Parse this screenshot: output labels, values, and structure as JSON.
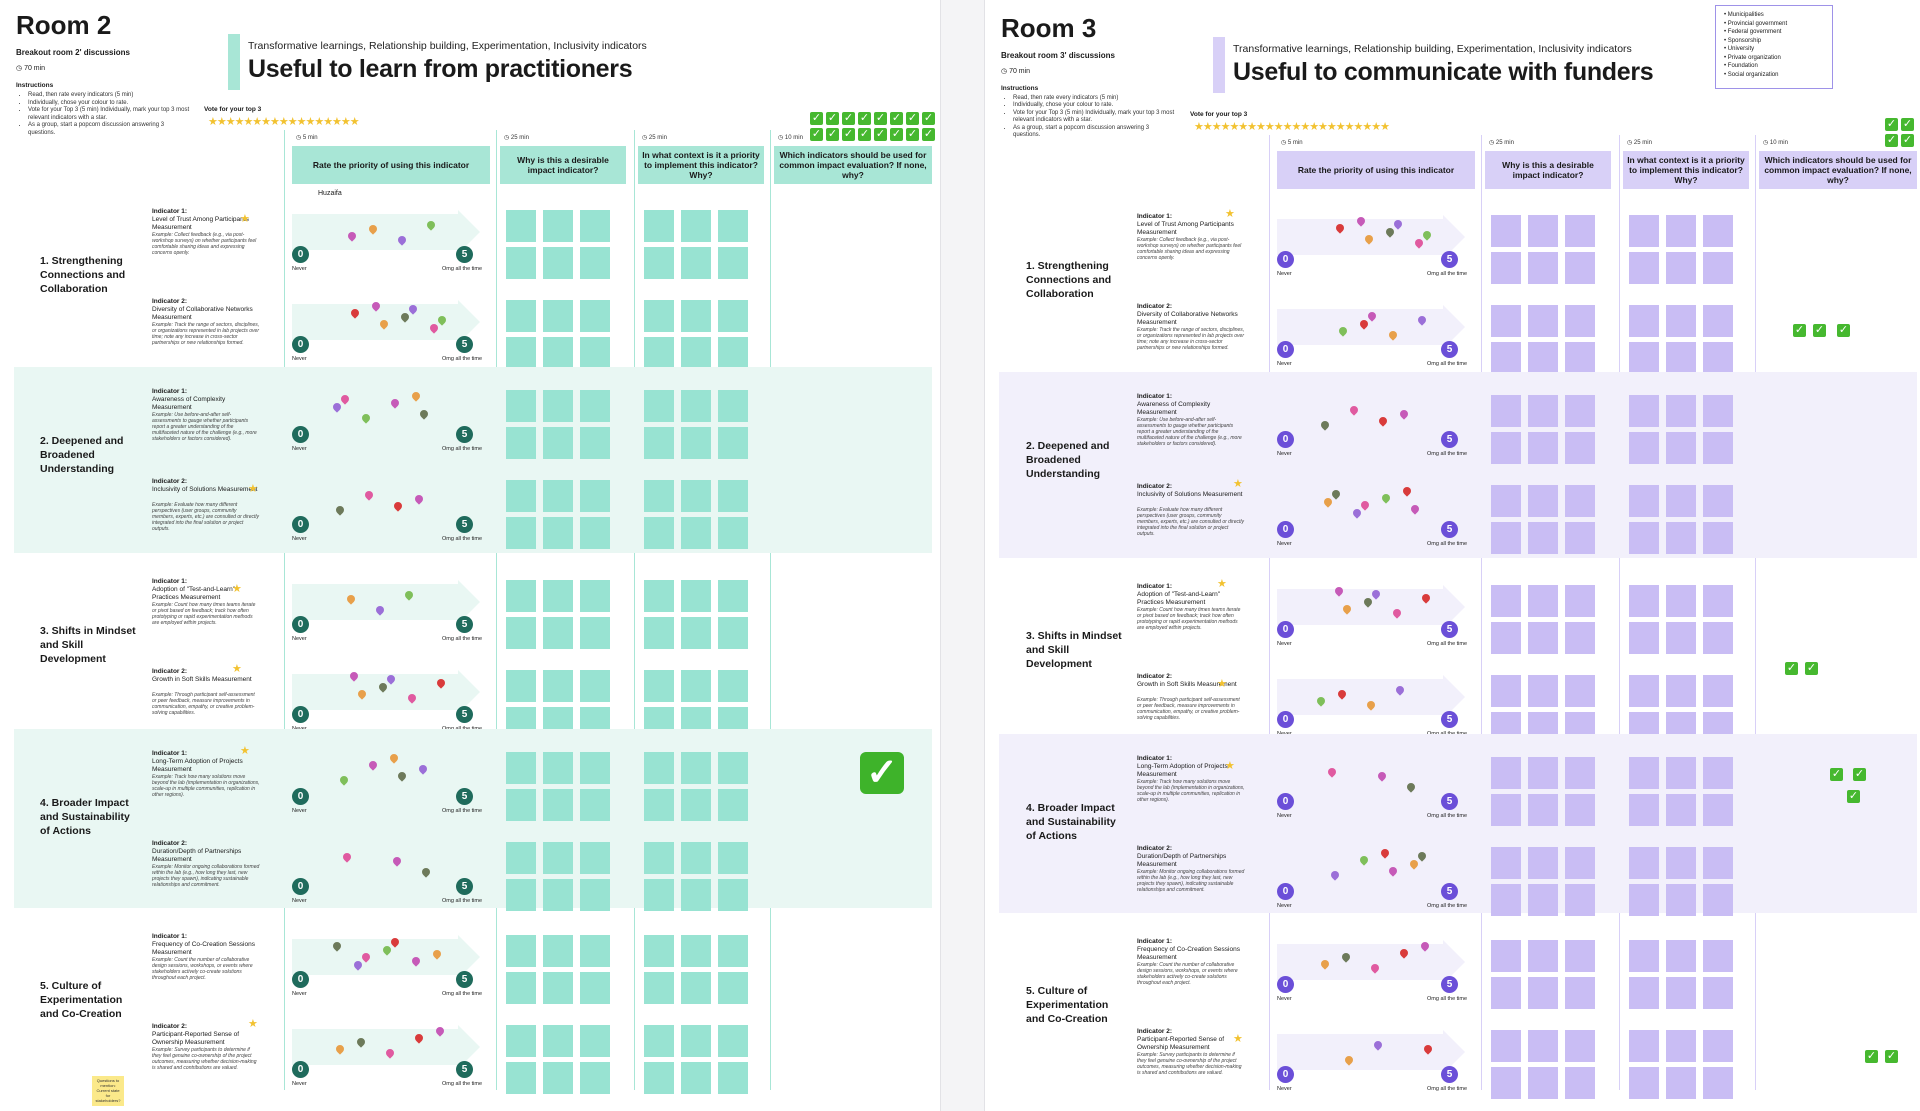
{
  "colors": {
    "room2_accent": "#a8e6d6",
    "room2_band": "#e9f7f3",
    "room2_note": "#98e3d2",
    "room2_circle": "#1f6b5c",
    "room3_accent": "#d8d0f7",
    "room3_band": "#f2f0fb",
    "room3_note": "#c9bdf4",
    "room3_circle": "#6b4fd8",
    "star": "#f2c230",
    "check": "#46b82f"
  },
  "room2": {
    "title": "Room 2",
    "subtitle": "Breakout room 2' discussions",
    "timer": "70 min",
    "instructions_title": "Instructions",
    "instructions": [
      "Read, then rate every indicators (5 min)",
      "Individually, chose your colour to rate.",
      "Vote for your Top 3 (5 min) Individually, mark your top 3 most relevant indicators with a star.",
      "As a group, start a popcorn discussion answering 3 questions."
    ],
    "vote_title": "Vote for your top 3",
    "head_tags": "Transformative learnings, Relationship building, Experimentation, Inclusivity indicators",
    "head_main": "Useful to learn from practitioners",
    "handwriting": "Huzaifa",
    "bottom_note": "Questions to mention: Current state for stakeholders?"
  },
  "room3": {
    "title": "Room 3",
    "subtitle": "Breakout room 3' discussions",
    "timer": "70 min",
    "instructions_title": "Instructions",
    "instructions": [
      "Read, then rate every indicators (5 min)",
      "Individually, chose your colour to rate.",
      "Vote for your Top 3 (5 min) Individually, mark your top 3 most relevant indicators with a star.",
      "As a group, start a popcorn discussion answering 3 questions."
    ],
    "vote_title": "Vote for your top 3",
    "head_tags": "Transformative learnings, Relationship building, Experimentation, Inclusivity indicators",
    "head_main": "Useful to communicate with funders",
    "legend": [
      "Municipalities",
      "Provincial government",
      "Federal government",
      "Sponsorship",
      "University",
      "Private organization",
      "Foundation",
      "Social organization"
    ]
  },
  "columns": {
    "c1_time": "5 min",
    "c1_head": "Rate the priority of using this indicator",
    "c2_time": "25 min",
    "c2_head": "Why is this a desirable impact indicator?",
    "c3_time": "25 min",
    "c3_head": "In what context is it a priority to implement this indicator? Why?",
    "c4_time": "10 min",
    "c4_head": "Which indicators should be used for common impact evaluation? If none, why?"
  },
  "scale": {
    "min_value": "0",
    "max_value": "5",
    "min_label": "Never",
    "max_label": "Omg all the time"
  },
  "sections": [
    {
      "title": "1. Strengthening Connections and Collaboration",
      "indicators": [
        {
          "label": "Indicator 1:",
          "name": "Level of Trust Among Participants Measurement",
          "example": "Example: Collect feedback (e.g., via post-workshop surveys) on whether participants feel comfortable sharing ideas and expressing concerns openly."
        },
        {
          "label": "Indicator 2:",
          "name": "Diversity of Collaborative Networks Measurement",
          "example": "Example: Track the range of sectors, disciplines, or organizations represented in lab projects over time; note any increase in cross-sector partnerships or new relationships formed."
        }
      ]
    },
    {
      "title": "2. Deepened and Broadened Understanding",
      "indicators": [
        {
          "label": "Indicator 1:",
          "name": "Awareness of Complexity Measurement",
          "example": "Example: Use before-and-after self-assessments to gauge whether participants report a greater understanding of the multifaceted nature of the challenge (e.g., more stakeholders or factors considered)."
        },
        {
          "label": "Indicator 2:",
          "name": "Inclusivity of Solutions Measurement",
          "example": "Example: Evaluate how many different perspectives (user groups, community members, experts, etc.) are consulted or directly integrated into the final solution or project outputs."
        }
      ]
    },
    {
      "title": "3. Shifts in Mindset and Skill Development",
      "indicators": [
        {
          "label": "Indicator 1:",
          "name": "Adoption of \"Test-and-Learn\" Practices Measurement",
          "example": "Example: Count how many times teams iterate or pivot based on feedback; track how often prototyping or rapid experimentation methods are employed within projects."
        },
        {
          "label": "Indicator 2:",
          "name": "Growth in Soft Skills Measurement",
          "example": "Example: Through participant self-assessment or peer feedback, measure improvements in communication, empathy, or creative problem-solving capabilities."
        }
      ]
    },
    {
      "title": "4. Broader Impact and Sustainability of Actions",
      "indicators": [
        {
          "label": "Indicator 1:",
          "name": "Long-Term Adoption of Projects Measurement",
          "example": "Example: Track how many solutions move beyond the lab (implementation in organizations, scale-up in multiple communities, replication in other regions)."
        },
        {
          "label": "Indicator 2:",
          "name": "Duration/Depth of Partnerships Measurement",
          "example": "Example: Monitor ongoing collaborations formed within the lab (e.g., how long they last, new projects they spawn), indicating sustainable relationships and commitment."
        }
      ]
    },
    {
      "title": "5. Culture of Experimentation and Co-Creation",
      "indicators": [
        {
          "label": "Indicator 1:",
          "name": "Frequency of Co-Creation Sessions Measurement",
          "example": "Example: Count the number of collaborative design sessions, workshops, or events where stakeholders actively co-create solutions throughout each project."
        },
        {
          "label": "Indicator 2:",
          "name": "Participant-Reported Sense of Ownership Measurement",
          "example": "Example: Survey participants to determine if they feel genuine co-ownership of the project outcomes, measuring whether decision-making is shared and contributions are valued."
        }
      ]
    }
  ]
}
